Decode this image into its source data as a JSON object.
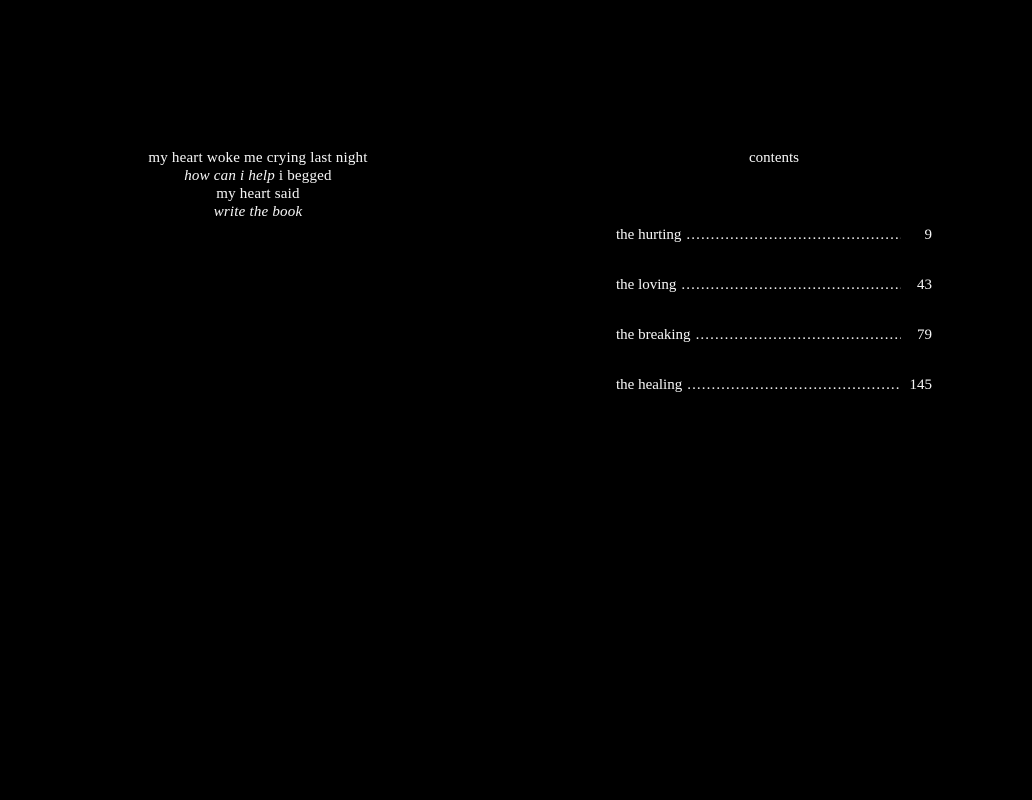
{
  "colors": {
    "background": "#000000",
    "text": "#f5f5f5"
  },
  "left_page": {
    "poem_lines": [
      {
        "segments": [
          {
            "text": "my heart woke me crying last night",
            "style": "roman"
          }
        ]
      },
      {
        "segments": [
          {
            "text": "how can i help",
            "style": "italic"
          },
          {
            "text": " i begged",
            "style": "roman"
          }
        ]
      },
      {
        "segments": [
          {
            "text": "my heart said",
            "style": "roman"
          }
        ]
      },
      {
        "segments": [
          {
            "text": "write the book",
            "style": "italic"
          }
        ]
      }
    ]
  },
  "right_page": {
    "title": "contents",
    "dot_leader": "........................................................................................................................................",
    "toc_entries": [
      {
        "label": "the hurting",
        "page": "9"
      },
      {
        "label": "the loving",
        "page": "43"
      },
      {
        "label": "the breaking",
        "page": "79"
      },
      {
        "label": "the healing",
        "page": "145"
      }
    ]
  }
}
